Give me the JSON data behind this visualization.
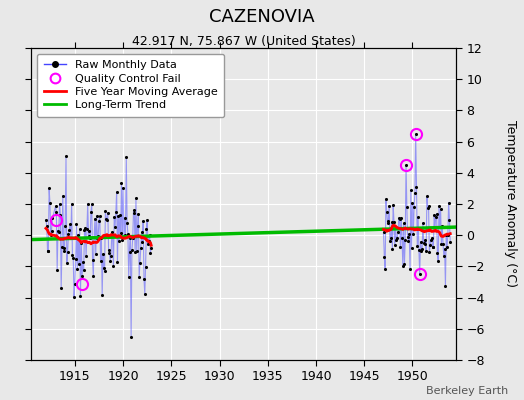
{
  "title": "CAZENOVIA",
  "subtitle": "42.917 N, 75.867 W (United States)",
  "ylabel": "Temperature Anomaly (°C)",
  "credit": "Berkeley Earth",
  "xlim": [
    1910.5,
    1954.5
  ],
  "ylim": [
    -8,
    12
  ],
  "yticks": [
    -8,
    -6,
    -4,
    -2,
    0,
    2,
    4,
    6,
    8,
    10,
    12
  ],
  "xticks": [
    1915,
    1920,
    1925,
    1930,
    1935,
    1940,
    1945,
    1950
  ],
  "background_color": "#e8e8e8",
  "plot_bg_color": "#e8e8e8",
  "trend_x": [
    1910.5,
    1954.5
  ],
  "trend_y": [
    -0.28,
    0.52
  ],
  "line_color": "#4444ff",
  "dot_color": "#000000",
  "qc_color": "#ff00ff",
  "avg_color": "#ff0000",
  "trend_color": "#00bb00",
  "legend_labels": [
    "Raw Monthly Data",
    "Quality Control Fail",
    "Five Year Moving Average",
    "Long-Term Trend"
  ],
  "seed": 12345
}
